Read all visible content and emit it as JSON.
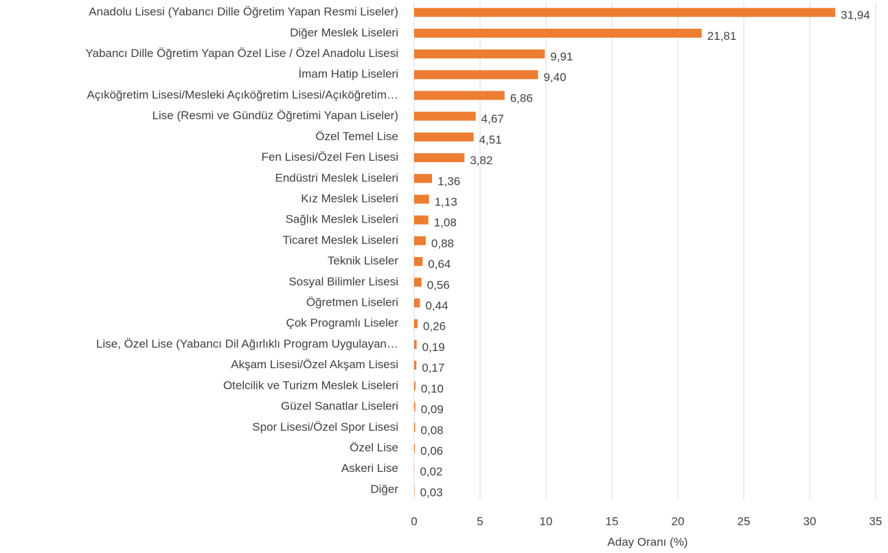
{
  "chart_data": {
    "type": "barh",
    "categories": [
      "Anadolu Lisesi (Yabancı Dille Öğretim Yapan Resmi Liseler)",
      "Diğer Meslek Liseleri",
      "Yabancı Dille Öğretim Yapan Özel Lise / Özel Anadolu Lisesi",
      "İmam Hatip Liseleri",
      "Açıköğretim Lisesi/Mesleki Açıköğretim Lisesi/Açıköğretim…",
      "Lise (Resmi ve Gündüz Öğretimi Yapan Liseler)",
      "Özel Temel Lise",
      "Fen Lisesi/Özel Fen Lisesi",
      "Endüstri Meslek Liseleri",
      "Kız Meslek Liseleri",
      "Sağlık Meslek Liseleri",
      "Ticaret Meslek Liseleri",
      "Teknik Liseler",
      "Sosyal Bilimler Lisesi",
      "Öğretmen Liseleri",
      "Çok Programlı Liseler",
      "Lise, Özel Lise (Yabancı Dil Ağırlıklı Program Uygulayan…",
      "Akşam Lisesi/Özel Akşam Lisesi",
      "Otelcilik ve Turizm Meslek Liseleri",
      "Güzel Sanatlar Liseleri",
      "Spor Lisesi/Özel Spor Lisesi",
      "Özel Lise",
      "Askeri Lise",
      "Diğer"
    ],
    "values": [
      31.94,
      21.81,
      9.91,
      9.4,
      6.86,
      4.67,
      4.51,
      3.82,
      1.36,
      1.13,
      1.08,
      0.88,
      0.64,
      0.56,
      0.44,
      0.26,
      0.19,
      0.17,
      0.1,
      0.09,
      0.08,
      0.06,
      0.02,
      0.03
    ],
    "value_labels": [
      "31,94",
      "21,81",
      "9,91",
      "9,40",
      "6,86",
      "4,67",
      "4,51",
      "3,82",
      "1,36",
      "1,13",
      "1,08",
      "0,88",
      "0,64",
      "0,56",
      "0,44",
      "0,26",
      "0,19",
      "0,17",
      "0,10",
      "0,09",
      "0,08",
      "0,06",
      "0,02",
      "0,03"
    ],
    "color": "#ed7d31",
    "x_label": "Aday Oranı (%)",
    "xlim": [
      0,
      35
    ],
    "xticks": [
      0,
      5,
      10,
      15,
      20,
      25,
      30,
      35
    ],
    "grid": true
  }
}
